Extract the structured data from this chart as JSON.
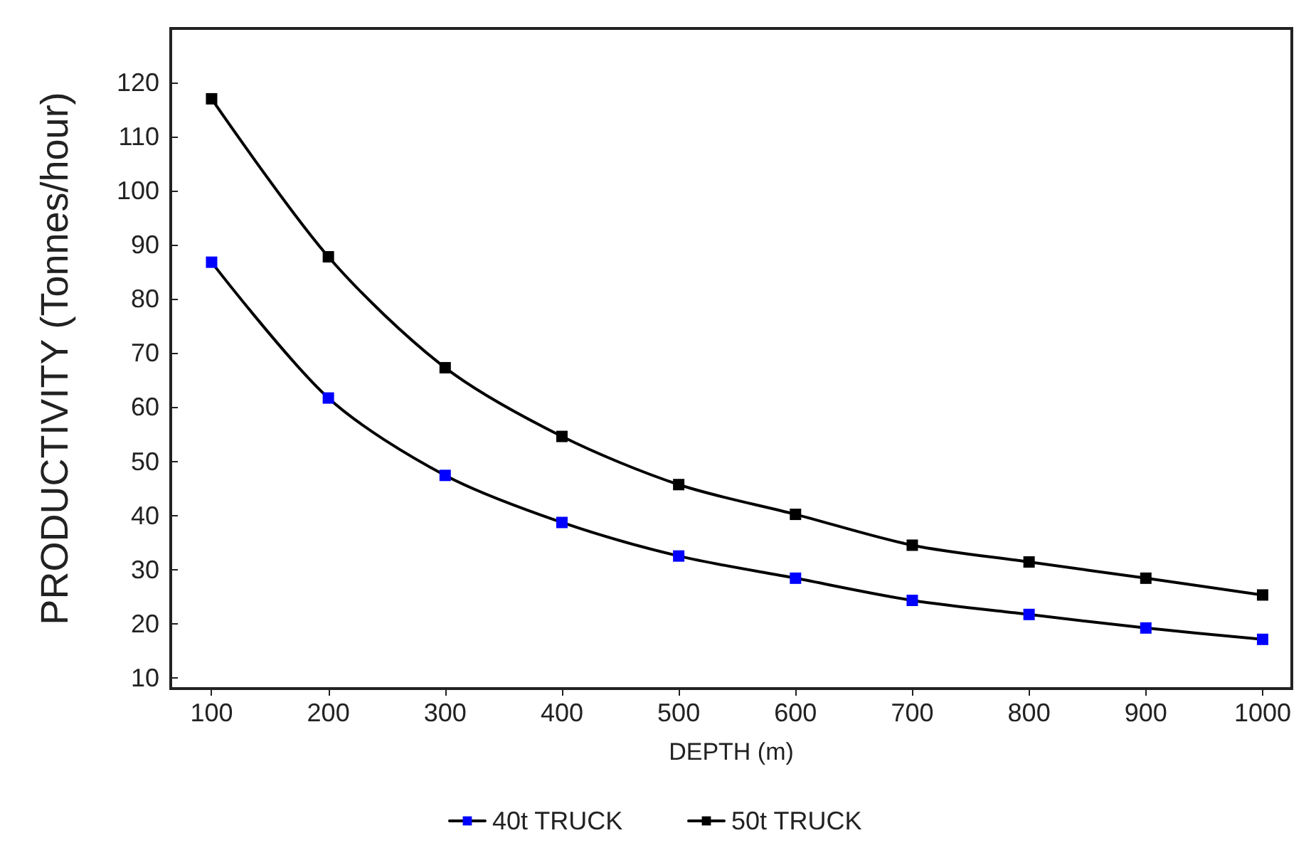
{
  "chart_data": {
    "type": "line",
    "xlabel": "DEPTH (m)",
    "ylabel": "PRODUCTIVITY (Tonnes/hour)",
    "x": [
      100,
      200,
      300,
      400,
      500,
      600,
      700,
      800,
      900,
      1000
    ],
    "series": [
      {
        "name": "40t TRUCK",
        "color": "#0000ff",
        "values": [
          86.8,
          61.7,
          47.4,
          38.7,
          32.5,
          28.4,
          24.3,
          21.7,
          19.2,
          17.1
        ]
      },
      {
        "name": "50t TRUCK",
        "color": "#000000",
        "values": [
          117,
          87.8,
          67.3,
          54.6,
          45.7,
          40.2,
          34.5,
          31.4,
          28.4,
          25.3
        ]
      }
    ],
    "xlim": [
      65,
      1025
    ],
    "xticks": [
      100,
      200,
      300,
      400,
      500,
      600,
      700,
      800,
      900,
      1000
    ],
    "ylim": [
      8,
      130
    ],
    "yticks": [
      10,
      20,
      30,
      40,
      50,
      60,
      70,
      80,
      90,
      100,
      110,
      120
    ],
    "grid": false,
    "legend": "bottom",
    "marker": "square",
    "line_style": "solid"
  }
}
